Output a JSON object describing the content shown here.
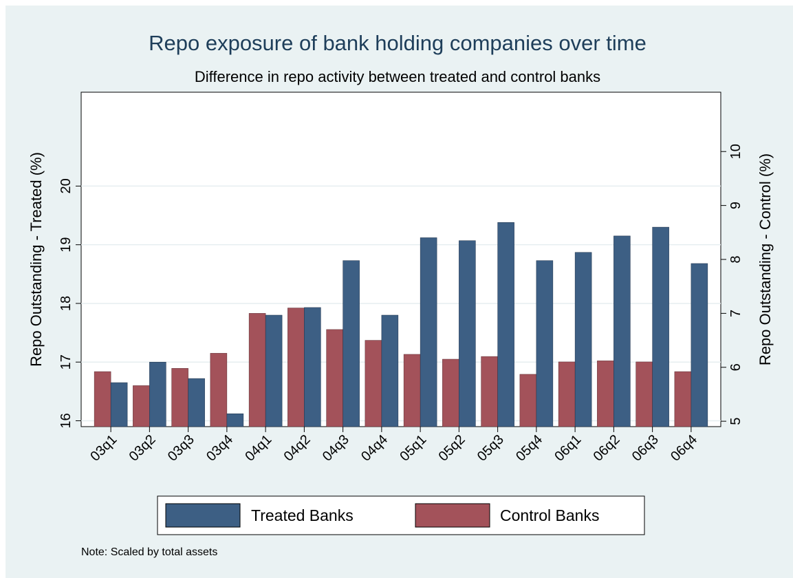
{
  "chart_data": {
    "type": "bar",
    "title": "Repo exposure of bank holding companies over time",
    "subtitle": "Difference in repo activity between treated and control banks",
    "ylabel_left": "Repo Outstanding - Treated (%)",
    "ylabel_right": "Repo Outstanding - Control (%)",
    "note": "Note: Scaled by total assets",
    "categories": [
      "03q1",
      "03q2",
      "03q3",
      "03q4",
      "04q1",
      "04q2",
      "04q3",
      "04q4",
      "05q1",
      "05q2",
      "05q3",
      "05q4",
      "06q1",
      "06q2",
      "06q3",
      "06q4"
    ],
    "left_axis": {
      "min": 15.9,
      "max": 21.6,
      "ticks": [
        16,
        17,
        18,
        19,
        20
      ]
    },
    "right_axis": {
      "min": 4.9,
      "max": 11.1,
      "ticks": [
        5,
        6,
        7,
        8,
        9,
        10
      ]
    },
    "grid": true,
    "legend_position": "bottom",
    "series": [
      {
        "name": "Treated Banks",
        "axis": "left",
        "color": "#3d5f84",
        "values": [
          16.65,
          17.0,
          16.72,
          16.12,
          17.8,
          17.93,
          18.73,
          17.8,
          19.12,
          19.07,
          19.38,
          18.73,
          18.87,
          19.15,
          19.3,
          18.68
        ]
      },
      {
        "name": "Control Banks",
        "axis": "right",
        "color": "#a3525a",
        "values": [
          5.92,
          5.66,
          5.98,
          6.26,
          7.0,
          7.1,
          6.7,
          6.5,
          6.24,
          6.15,
          6.2,
          5.87,
          6.1,
          6.12,
          6.1,
          5.92
        ]
      }
    ]
  }
}
